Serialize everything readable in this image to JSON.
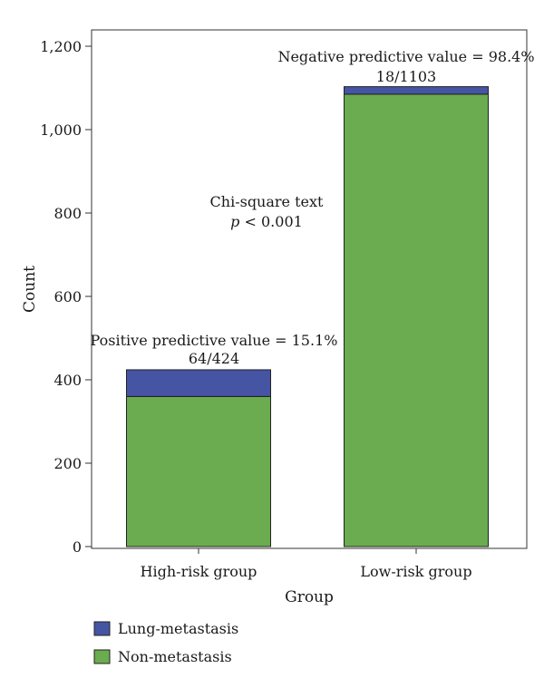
{
  "chart_data": {
    "type": "bar",
    "stacked": true,
    "categories": [
      "High-risk group",
      "Low-risk group"
    ],
    "series": [
      {
        "name": "Non-metastasis",
        "values": [
          360,
          1085
        ],
        "color": "#6aac4f"
      },
      {
        "name": "Lung-metastasis",
        "values": [
          64,
          18
        ],
        "color": "#4654a4"
      }
    ],
    "xlabel": "Group",
    "ylabel": "Count",
    "ylim": [
      0,
      1200
    ],
    "yticks": [
      0,
      200,
      400,
      600,
      800,
      1000,
      1200
    ],
    "ytick_labels": [
      "0",
      "200",
      "400",
      "600",
      "800",
      "1,000",
      "1,200"
    ],
    "grid": false,
    "legend_position": "bottom-left",
    "annotations": {
      "high_risk_line1": "Positive predictive value = 15.1%",
      "high_risk_line2": "64/424",
      "low_risk_line1": "Negative predictive value = 98.4%",
      "low_risk_line2": "18/1103",
      "chi_line1": "Chi-square text",
      "chi_p_symbol": "p",
      "chi_p_rest": " < 0.001"
    }
  }
}
